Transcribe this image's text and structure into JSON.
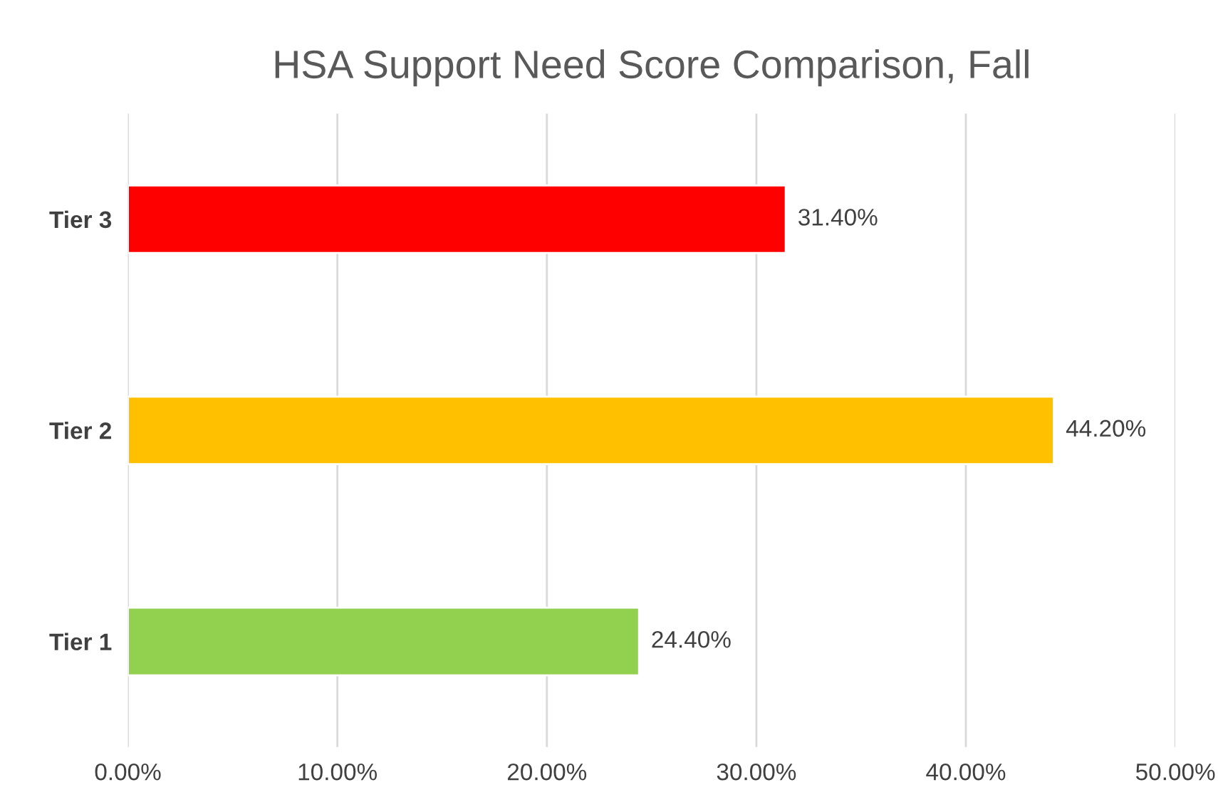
{
  "chart_data": {
    "type": "bar",
    "orientation": "horizontal",
    "title": "HSA Support Need Score Comparison, Fall",
    "categories": [
      "Tier 3",
      "Tier 2",
      "Tier 1"
    ],
    "values": [
      31.4,
      44.2,
      24.4
    ],
    "colors": [
      "#ff0000",
      "#ffc000",
      "#92d050"
    ],
    "value_labels": [
      "31.40%",
      "44.20%",
      "24.40%"
    ],
    "xlim": [
      0,
      50
    ],
    "xticks": [
      {
        "value": 0,
        "label": "0.00%"
      },
      {
        "value": 10,
        "label": "10.00%"
      },
      {
        "value": 20,
        "label": "20.00%"
      },
      {
        "value": 30,
        "label": "30.00%"
      },
      {
        "value": 40,
        "label": "40.00%"
      },
      {
        "value": 50,
        "label": "50.00%"
      }
    ],
    "grid": "x"
  }
}
